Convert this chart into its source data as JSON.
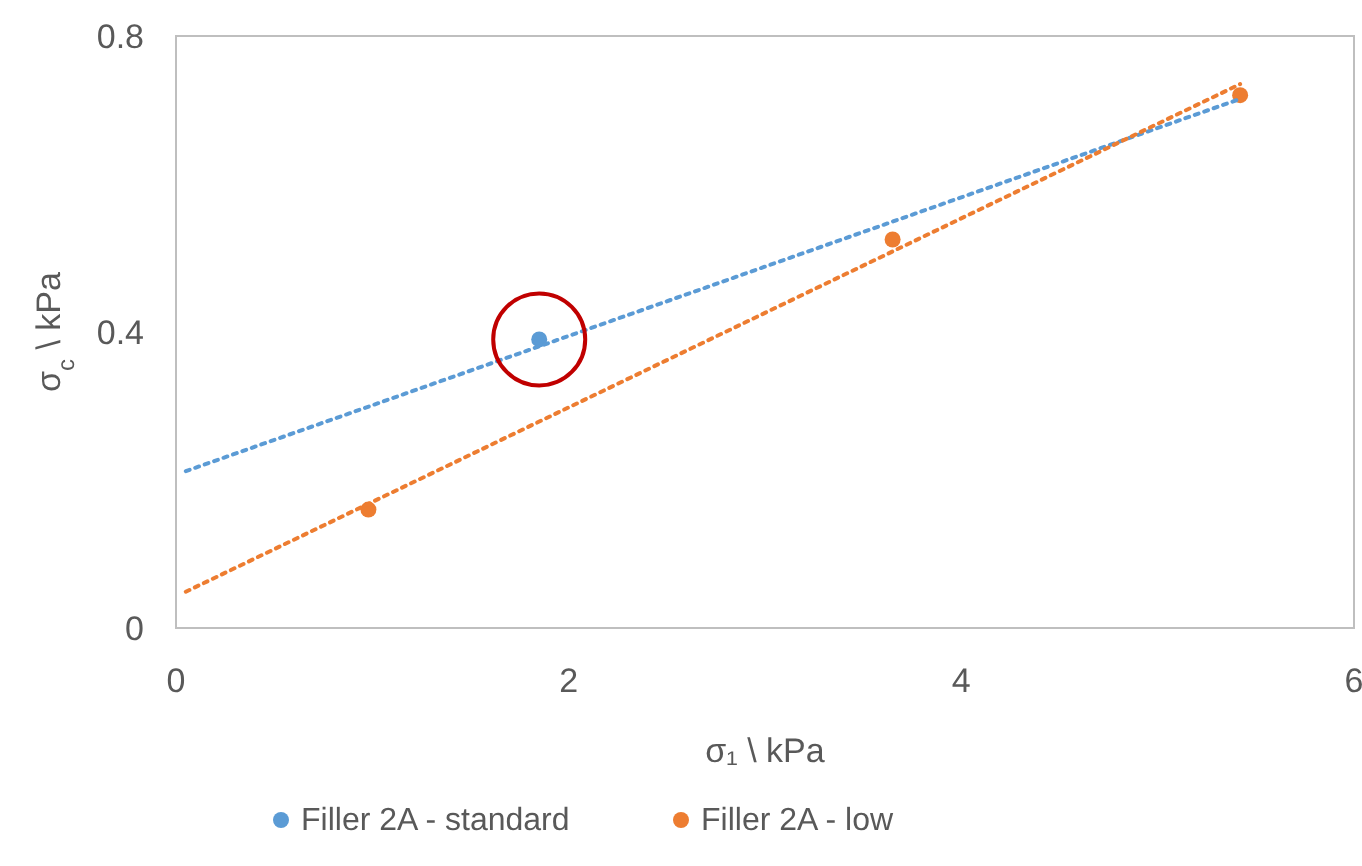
{
  "chart_data": {
    "type": "scatter",
    "xlabel": "σ₁ \\ kPa",
    "ylabel": "σ$_{c}$ \\ kPa",
    "xlim": [
      0,
      6
    ],
    "ylim": [
      0,
      0.8
    ],
    "xticks": [
      0,
      2,
      4,
      6
    ],
    "yticks": [
      0,
      0.4,
      0.8
    ],
    "grid": false,
    "legend": "bottom",
    "marker": "circle",
    "series": [
      {
        "name": "Filler 2A - standard",
        "color": "#5b9bd5",
        "x": [
          1.85
        ],
        "values": [
          0.39
        ]
      },
      {
        "name": "Filler 2A - low",
        "color": "#ed7d31",
        "x": [
          0.98,
          3.65,
          5.42
        ],
        "values": [
          0.16,
          0.525,
          0.72
        ]
      },
      {
        "type": "line",
        "color": "#5b9bd5",
        "x": [
          0.05,
          5.42
        ],
        "values": [
          0.212,
          0.715
        ],
        "marker": "none",
        "line_style": "dotted"
      },
      {
        "type": "line",
        "color": "#ed7d31",
        "x": [
          0.05,
          5.42
        ],
        "values": [
          0.049,
          0.735
        ],
        "marker": "none",
        "line_style": "dotted"
      }
    ]
  }
}
